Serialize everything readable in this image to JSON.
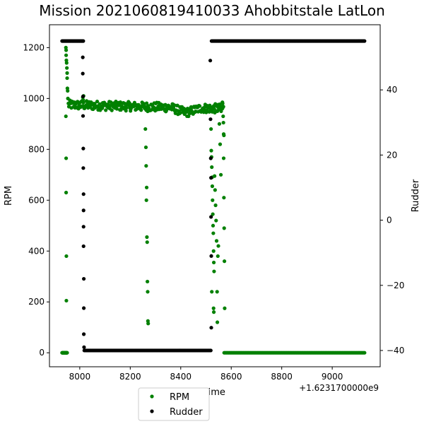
{
  "chart_data": {
    "type": "scatter",
    "title": "Mission 2021060819410033 Ahobbitstale LatLon",
    "xlabel": "Time",
    "x_offset_label": "+1.6231700000e9",
    "ylabel_left": "RPM",
    "ylabel_right": "Rudder",
    "xlim": [
      7880,
      9190
    ],
    "ylim_left": [
      -55,
      1290
    ],
    "ylim_right": [
      -45,
      60
    ],
    "x_ticks": [
      8000,
      8200,
      8400,
      8600,
      8800,
      9000
    ],
    "y_ticks_left": [
      0,
      200,
      400,
      600,
      800,
      1000,
      1200
    ],
    "y_ticks_right": [
      -40,
      -20,
      0,
      20,
      40
    ],
    "grid": false,
    "legend_position": "bottom-center",
    "series": [
      {
        "name": "RPM",
        "axis": "left",
        "color": "#008000",
        "segments": [
          {
            "x_start": 7930,
            "x_end": 7950,
            "y_start": 0,
            "y_end": 0,
            "step": 1
          },
          {
            "x_start": 7955,
            "x_end": 8570,
            "y_start": 975,
            "y_end": 960,
            "step": 2,
            "jitter": 18,
            "dip": {
              "center": 8420,
              "width": 60,
              "depth": 20
            }
          },
          {
            "x_start": 8572,
            "x_end": 9130,
            "y_start": 0,
            "y_end": 0,
            "step": 4
          }
        ],
        "points": [
          [
            7945,
            1200
          ],
          [
            7946,
            1190
          ],
          [
            7946,
            1170
          ],
          [
            7947,
            1150
          ],
          [
            7948,
            1140
          ],
          [
            7949,
            1120
          ],
          [
            7950,
            1100
          ],
          [
            7950,
            1080
          ],
          [
            7951,
            1040
          ],
          [
            7952,
            1030
          ],
          [
            7953,
            1000
          ],
          [
            7945,
            930
          ],
          [
            7946,
            765
          ],
          [
            7946,
            630
          ],
          [
            7947,
            380
          ],
          [
            7947,
            205
          ],
          [
            7948,
            0
          ],
          [
            8012,
            1005
          ],
          [
            8013,
            995
          ],
          [
            8014,
            985
          ],
          [
            8015,
            1010
          ],
          [
            8260,
            880
          ],
          [
            8262,
            808
          ],
          [
            8263,
            735
          ],
          [
            8264,
            600
          ],
          [
            8265,
            650
          ],
          [
            8266,
            455
          ],
          [
            8267,
            435
          ],
          [
            8268,
            280
          ],
          [
            8269,
            240
          ],
          [
            8270,
            125
          ],
          [
            8271,
            115
          ],
          [
            8520,
            880
          ],
          [
            8521,
            795
          ],
          [
            8522,
            770
          ],
          [
            8523,
            730
          ],
          [
            8524,
            690
          ],
          [
            8525,
            655
          ],
          [
            8526,
            600
          ],
          [
            8527,
            545
          ],
          [
            8528,
            500
          ],
          [
            8529,
            470
          ],
          [
            8530,
            400
          ],
          [
            8531,
            355
          ],
          [
            8532,
            320
          ],
          [
            8523,
            240
          ],
          [
            8530,
            175
          ],
          [
            8531,
            160
          ],
          [
            8534,
            695
          ],
          [
            8536,
            640
          ],
          [
            8538,
            580
          ],
          [
            8540,
            520
          ],
          [
            8542,
            440
          ],
          [
            8544,
            240
          ],
          [
            8545,
            120
          ],
          [
            8547,
            380
          ],
          [
            8549,
            420
          ],
          [
            8553,
            900
          ],
          [
            8556,
            820
          ],
          [
            8559,
            700
          ],
          [
            8560,
            950
          ],
          [
            8562,
            960
          ],
          [
            8565,
            985
          ],
          [
            8566,
            980
          ],
          [
            8567,
            965
          ],
          [
            8568,
            930
          ],
          [
            8569,
            905
          ],
          [
            8570,
            765
          ],
          [
            8571,
            610
          ],
          [
            8572,
            490
          ],
          [
            8573,
            360
          ],
          [
            8574,
            175
          ],
          [
            8570,
            860
          ],
          [
            8571,
            855
          ]
        ]
      },
      {
        "name": "Rudder",
        "axis": "right",
        "color": "#000000",
        "segments": [
          {
            "x_start": 7930,
            "x_end": 8015,
            "y_start": 55,
            "y_end": 55,
            "step": 2
          },
          {
            "x_start": 8018,
            "x_end": 8520,
            "y_start": -40,
            "y_end": -40,
            "step": 3
          },
          {
            "x_start": 8522,
            "x_end": 9130,
            "y_start": 55,
            "y_end": 55,
            "step": 3
          }
        ],
        "points": [
          [
            8012,
            50
          ],
          [
            8012,
            45
          ],
          [
            8013,
            38
          ],
          [
            8013,
            32
          ],
          [
            8014,
            22
          ],
          [
            8014,
            16
          ],
          [
            8015,
            8
          ],
          [
            8015,
            3
          ],
          [
            8015,
            -2
          ],
          [
            8015,
            -8
          ],
          [
            8016,
            -18
          ],
          [
            8016,
            -27
          ],
          [
            8016,
            -35
          ],
          [
            8017,
            -39
          ],
          [
            8517,
            49
          ],
          [
            8518,
            31
          ],
          [
            8519,
            19
          ],
          [
            8520,
            13
          ],
          [
            8520,
            1
          ],
          [
            8521,
            -11
          ],
          [
            8521,
            -33
          ]
        ]
      }
    ]
  }
}
